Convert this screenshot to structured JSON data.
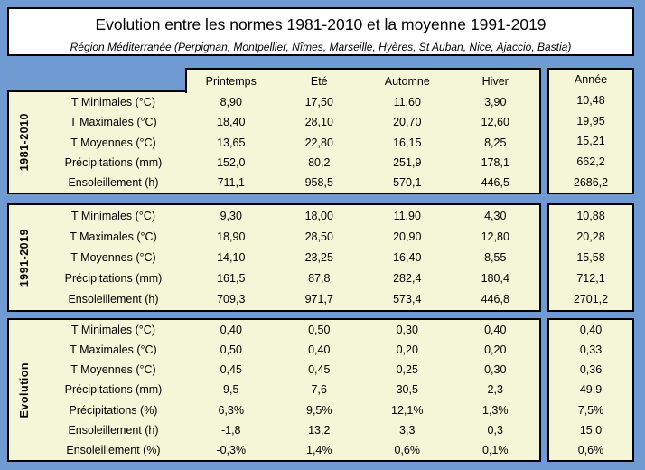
{
  "chart_data": {
    "type": "table",
    "title": "Evolution entre les normes 1981-2010 et la moyenne 1991-2019",
    "subtitle": "Région Méditerranée (Perpignan, Montpellier, Nîmes, Marseille, Hyères, St Auban, Nice, Ajaccio, Bastia)",
    "columns": [
      "Printemps",
      "Eté",
      "Automne",
      "Hiver"
    ],
    "year_column": "Année",
    "sections": [
      {
        "group": "1981-2010",
        "rows": [
          {
            "label": "T Minimales (°C)",
            "values": [
              "8,90",
              "17,50",
              "11,60",
              "3,90"
            ],
            "annee": "10,48"
          },
          {
            "label": "T Maximales (°C)",
            "values": [
              "18,40",
              "28,10",
              "20,70",
              "12,60"
            ],
            "annee": "19,95"
          },
          {
            "label": "T Moyennes (°C)",
            "values": [
              "13,65",
              "22,80",
              "16,15",
              "8,25"
            ],
            "annee": "15,21"
          },
          {
            "label": "Précipitations (mm)",
            "values": [
              "152,0",
              "80,2",
              "251,9",
              "178,1"
            ],
            "annee": "662,2"
          },
          {
            "label": "Ensoleillement (h)",
            "values": [
              "711,1",
              "958,5",
              "570,1",
              "446,5"
            ],
            "annee": "2686,2"
          }
        ]
      },
      {
        "group": "1991-2019",
        "rows": [
          {
            "label": "T Minimales (°C)",
            "values": [
              "9,30",
              "18,00",
              "11,90",
              "4,30"
            ],
            "annee": "10,88"
          },
          {
            "label": "T Maximales (°C)",
            "values": [
              "18,90",
              "28,50",
              "20,90",
              "12,80"
            ],
            "annee": "20,28"
          },
          {
            "label": "T Moyennes (°C)",
            "values": [
              "14,10",
              "23,25",
              "16,40",
              "8,55"
            ],
            "annee": "15,58"
          },
          {
            "label": "Précipitations (mm)",
            "values": [
              "161,5",
              "87,8",
              "282,4",
              "180,4"
            ],
            "annee": "712,1"
          },
          {
            "label": "Ensoleillement (h)",
            "values": [
              "709,3",
              "971,7",
              "573,4",
              "446,8"
            ],
            "annee": "2701,2"
          }
        ]
      },
      {
        "group": "Evolution",
        "rows": [
          {
            "label": "T Minimales (°C)",
            "values": [
              "0,40",
              "0,50",
              "0,30",
              "0,40"
            ],
            "annee": "0,40"
          },
          {
            "label": "T Maximales (°C)",
            "values": [
              "0,50",
              "0,40",
              "0,20",
              "0,20"
            ],
            "annee": "0,33"
          },
          {
            "label": "T Moyennes (°C)",
            "values": [
              "0,45",
              "0,45",
              "0,25",
              "0,30"
            ],
            "annee": "0,36"
          },
          {
            "label": "Précipitations (mm)",
            "values": [
              "9,5",
              "7,6",
              "30,5",
              "2,3"
            ],
            "annee": "49,9"
          },
          {
            "label": "Précipitations (%)",
            "values": [
              "6,3%",
              "9,5%",
              "12,1%",
              "1,3%"
            ],
            "annee": "7,5%"
          },
          {
            "label": "Ensoleillement (h)",
            "values": [
              "-1,8",
              "13,2",
              "3,3",
              "0,3"
            ],
            "annee": "15,0"
          },
          {
            "label": "Ensoleillement (%)",
            "values": [
              "-0,3%",
              "1,4%",
              "0,6%",
              "0,1%"
            ],
            "annee": "0,6%"
          }
        ]
      }
    ],
    "colors": {
      "background": "#6f9bd2",
      "panel": "#f5f5d8",
      "title_background": "#ffffff",
      "border": "#000000",
      "text": "#000000"
    },
    "layout_hints": {
      "grid": "off",
      "decimal_separator": ","
    }
  }
}
